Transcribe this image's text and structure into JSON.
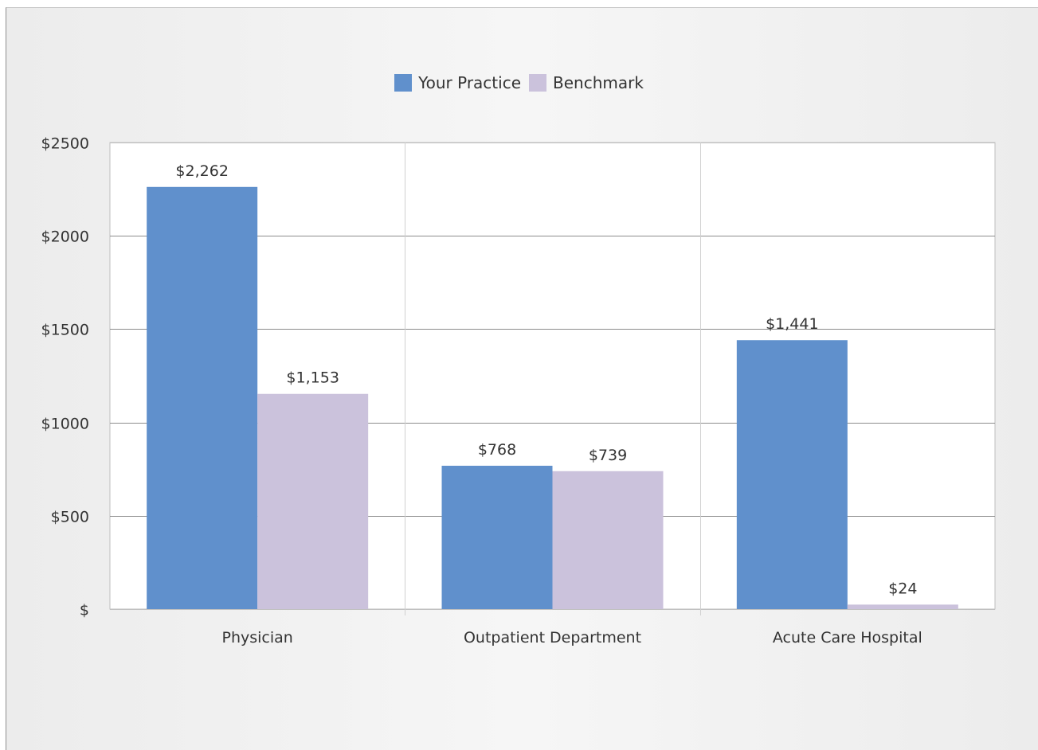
{
  "chart_data": {
    "type": "bar",
    "categories": [
      "Physician",
      "Outpatient Department",
      "Acute Care Hospital"
    ],
    "series": [
      {
        "name": "Your Practice",
        "color": "#6090cc",
        "values": [
          2262,
          768,
          1441
        ],
        "labels": [
          "$2,262",
          "$768",
          "$1,441"
        ]
      },
      {
        "name": "Benchmark",
        "color": "#cbc2dc",
        "values": [
          1153,
          739,
          24
        ],
        "labels": [
          "$1,153",
          "$739",
          "$24"
        ]
      }
    ],
    "ylim": [
      0,
      2500
    ],
    "yticks": [
      0,
      500,
      1000,
      1500,
      2000,
      2500
    ],
    "ytick_labels": [
      "$",
      "$500",
      "$1000",
      "$1500",
      "$2000",
      "$2500"
    ],
    "grid": true,
    "legend_position": "top-center",
    "title": "",
    "xlabel": "",
    "ylabel": ""
  }
}
